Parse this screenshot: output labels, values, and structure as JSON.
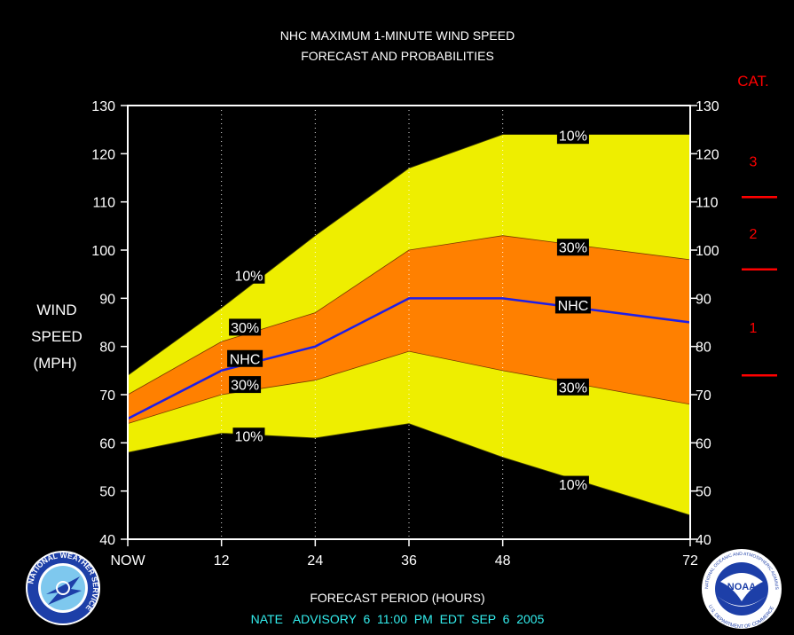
{
  "chart_data": {
    "type": "area",
    "title_line1": "NHC MAXIMUM 1-MINUTE WIND SPEED",
    "title_line2": "FORECAST AND PROBABILITIES",
    "xlabel": "FORECAST PERIOD (HOURS)",
    "ylabel_lines": [
      "WIND",
      "SPEED",
      "(MPH)"
    ],
    "footer": "NATE   ADVISORY  6  11:00  PM  EDT  SEP  6  2005",
    "x_ticks": [
      {
        "x": 0,
        "label": "NOW"
      },
      {
        "x": 12,
        "label": "12"
      },
      {
        "x": 24,
        "label": "24"
      },
      {
        "x": 36,
        "label": "36"
      },
      {
        "x": 48,
        "label": "48"
      },
      {
        "x": 72,
        "label": "72"
      }
    ],
    "xlim": [
      0,
      72
    ],
    "ylim": [
      40,
      130
    ],
    "y_ticks": [
      40,
      50,
      60,
      70,
      80,
      90,
      100,
      110,
      120,
      130
    ],
    "grid_x_dotted": [
      12,
      24,
      36,
      48
    ],
    "series": [
      {
        "name": "10%",
        "role": "upper10",
        "x": [
          0,
          12,
          24,
          36,
          48,
          72
        ],
        "values": [
          74,
          88,
          103,
          117,
          124,
          124
        ]
      },
      {
        "name": "30%",
        "role": "upper30",
        "x": [
          0,
          12,
          24,
          36,
          48,
          72
        ],
        "values": [
          70,
          81,
          87,
          100,
          103,
          98
        ]
      },
      {
        "name": "NHC",
        "role": "forecast",
        "x": [
          0,
          12,
          24,
          36,
          48,
          72
        ],
        "values": [
          65,
          75,
          80,
          90,
          90,
          85
        ]
      },
      {
        "name": "30%",
        "role": "lower30",
        "x": [
          0,
          12,
          24,
          36,
          48,
          72
        ],
        "values": [
          64,
          70,
          73,
          79,
          75,
          68
        ]
      },
      {
        "name": "10%",
        "role": "lower10",
        "x": [
          0,
          12,
          24,
          36,
          48,
          72
        ],
        "values": [
          58,
          62,
          61,
          64,
          57,
          45
        ]
      }
    ],
    "series_labels": [
      {
        "text": "10%",
        "x": 15.5,
        "y": 94.8
      },
      {
        "text": "30%",
        "x": 15,
        "y": 84
      },
      {
        "text": "NHC",
        "x": 15,
        "y": 77.5
      },
      {
        "text": "30%",
        "x": 15,
        "y": 72.1
      },
      {
        "text": "10%",
        "x": 15.5,
        "y": 61.4
      },
      {
        "text": "10%",
        "x": 57,
        "y": 123.8
      },
      {
        "text": "30%",
        "x": 57,
        "y": 100.6
      },
      {
        "text": "NHC",
        "x": 57,
        "y": 88.6
      },
      {
        "text": "30%",
        "x": 57,
        "y": 71.6
      },
      {
        "text": "10%",
        "x": 57,
        "y": 51.4
      }
    ],
    "category": {
      "title": "CAT.",
      "labels": [
        {
          "text": "3",
          "y": 118.5
        },
        {
          "text": "2",
          "y": 103.5
        },
        {
          "text": "1",
          "y": 84
        }
      ],
      "boundaries": [
        111,
        96,
        74
      ]
    },
    "colors": {
      "background": "#000000",
      "band10": "#EEEE00",
      "band30": "#FF8000",
      "forecast_line": "#1E1EE8",
      "category": "#FF0000",
      "text": "#FFFFFF",
      "footer": "#33EEEE"
    }
  },
  "logos": {
    "left_icon": "nws-logo-icon",
    "right_icon": "noaa-logo-icon",
    "left_text": "NATIONAL WEATHER SERVICE",
    "right_top_text": "NATIONAL OCEANIC AND ATMOSPHERIC ADMINISTRATION",
    "right_bottom_text": "U.S. DEPARTMENT OF COMMERCE",
    "right_center_text": "NOAA"
  }
}
